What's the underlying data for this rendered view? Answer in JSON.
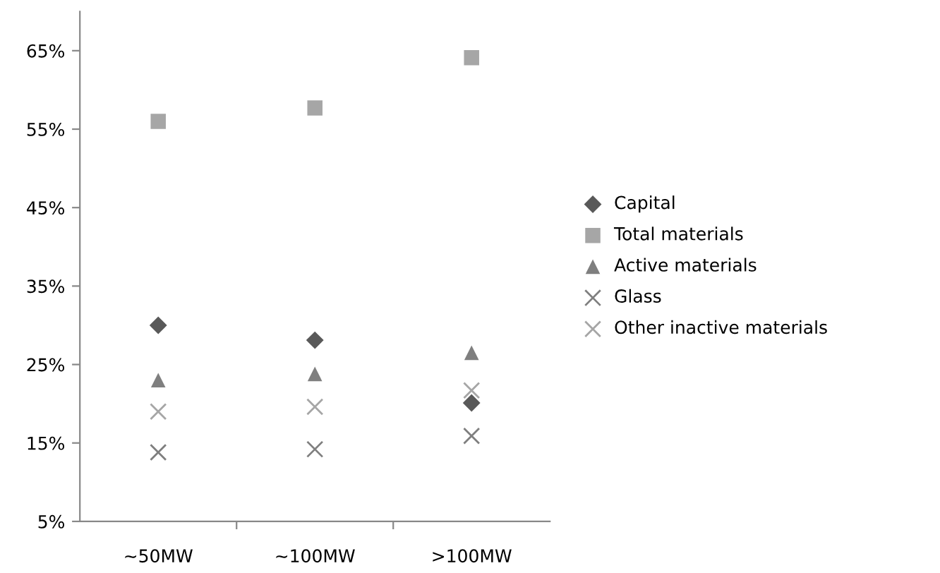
{
  "chart_data": {
    "type": "scatter",
    "categories": [
      "~50MW",
      "~100MW",
      ">100MW"
    ],
    "series": [
      {
        "name": "Capital",
        "color": "#595959",
        "marker": "diamond",
        "values": [
          30.0,
          28.1,
          20.1
        ]
      },
      {
        "name": "Total materials",
        "color": "#a6a6a6",
        "marker": "square",
        "values": [
          56.0,
          57.7,
          64.1
        ]
      },
      {
        "name": "Active materials",
        "color": "#7f7f7f",
        "marker": "triangle",
        "values": [
          23.0,
          23.8,
          26.5
        ]
      },
      {
        "name": "Glass",
        "color": "#7f7f7f",
        "marker": "cross",
        "values": [
          13.8,
          14.2,
          15.9
        ]
      },
      {
        "name": "Other inactive materials",
        "color": "#a6a6a6",
        "marker": "cross",
        "values": [
          19.0,
          19.6,
          21.7
        ]
      }
    ],
    "ylim": [
      5,
      70
    ],
    "yticks": [
      {
        "value": 5,
        "label": "5%"
      },
      {
        "value": 15,
        "label": "15%"
      },
      {
        "value": 25,
        "label": "25%"
      },
      {
        "value": 35,
        "label": "35%"
      },
      {
        "value": 45,
        "label": "45%"
      },
      {
        "value": 55,
        "label": "55%"
      },
      {
        "value": 65,
        "label": "65%"
      }
    ],
    "grid": false,
    "legend": "right"
  }
}
